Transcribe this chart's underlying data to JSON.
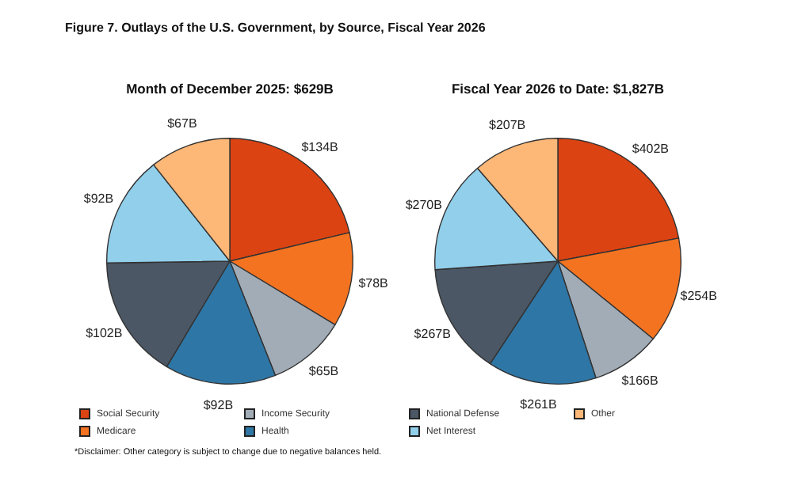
{
  "chart_data": [
    {
      "type": "pie",
      "title": "Figure 7. Outlays of the U.S. Government, by Source, Fiscal Year 2026",
      "subtitle": "Month of December 2025: $629B",
      "categories": [
        "Social Security",
        "Medicare",
        "Income Security",
        "Health",
        "National Defense",
        "Net Interest",
        "Other"
      ],
      "values": [
        134,
        78,
        65,
        92,
        102,
        92,
        67
      ],
      "value_labels": [
        "$134B",
        "$78B",
        "$65B",
        "$92B",
        "$102B",
        "$92B",
        "$67B"
      ],
      "colors": [
        "#dc4312",
        "#f47320",
        "#a2acb6",
        "#2e76a6",
        "#4b5765",
        "#91cfea",
        "#fdb777"
      ],
      "legend": "bottom"
    },
    {
      "type": "pie",
      "subtitle": "Fiscal Year 2026 to Date: $1,827B",
      "categories": [
        null,
        null,
        null,
        null,
        null,
        null,
        null
      ],
      "values": [
        402,
        254,
        166,
        261,
        267,
        270,
        207
      ],
      "value_labels": [
        "$402B",
        "$254B",
        "$166B",
        "$261B",
        "$267B",
        "$270B",
        "$207B"
      ],
      "colors": [
        "#dc4312",
        "#f47320",
        "#a2acb6",
        "#2e76a6",
        "#4b5765",
        "#91cfea",
        "#fdb777"
      ],
      "annotations": [
        "*Disclaimer: Other category is subject to change due to negative balances held."
      ]
    }
  ]
}
